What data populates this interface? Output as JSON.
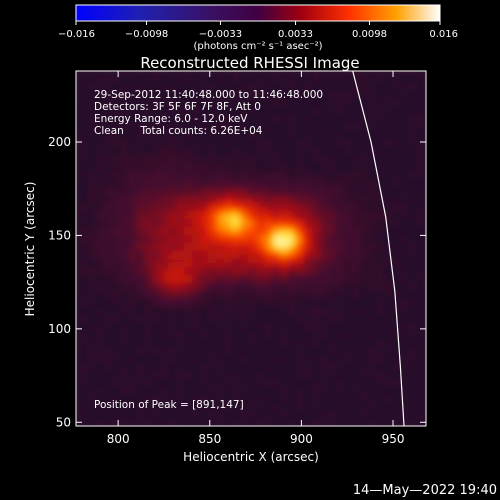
{
  "chart_data": {
    "type": "heatmap",
    "title": "Reconstructed RHESSI Image",
    "xlabel": "Heliocentric X (arcsec)",
    "ylabel": "Heliocentric Y (arcsec)",
    "xlim": [
      777,
      968
    ],
    "ylim": [
      48,
      238
    ],
    "x_ticks": [
      800,
      850,
      900,
      950
    ],
    "y_ticks": [
      50,
      100,
      150,
      200
    ],
    "colorbar": {
      "range": [
        -0.016,
        0.016
      ],
      "ticks": [
        -0.016,
        -0.0098,
        -0.0033,
        0.0033,
        0.0098,
        0.016
      ],
      "tick_labels": [
        "−0.016",
        "−0.0098",
        "−0.0033",
        "0.0033",
        "0.0098",
        "0.016"
      ],
      "units": "(photons cm⁻² s⁻¹ asec⁻²)"
    },
    "annotations": [
      "29-Sep-2012 11:40:48.000 to 11:46:48.000",
      "Detectors: 3F 5F 6F 7F 8F, Att 0",
      "Energy Range: 6.0 - 12.0 keV",
      "Clean     Total counts: 6.26E+04"
    ],
    "peak_label": "Position of Peak = [891,147]",
    "sources": [
      {
        "x": 891,
        "y": 147,
        "intensity": 1.0
      },
      {
        "x": 862,
        "y": 158,
        "intensity": 0.78
      },
      {
        "x": 831,
        "y": 125,
        "intensity": 0.45
      }
    ],
    "limb_curve": [
      [
        928,
        238
      ],
      [
        938,
        200
      ],
      [
        946,
        160
      ],
      [
        951,
        120
      ],
      [
        954,
        80
      ],
      [
        956,
        48
      ]
    ],
    "timestamp": "14—May—2022 19:40"
  },
  "colors": {
    "background": "#000000",
    "text": "#ffffff",
    "limb_line": "#ffffff"
  }
}
